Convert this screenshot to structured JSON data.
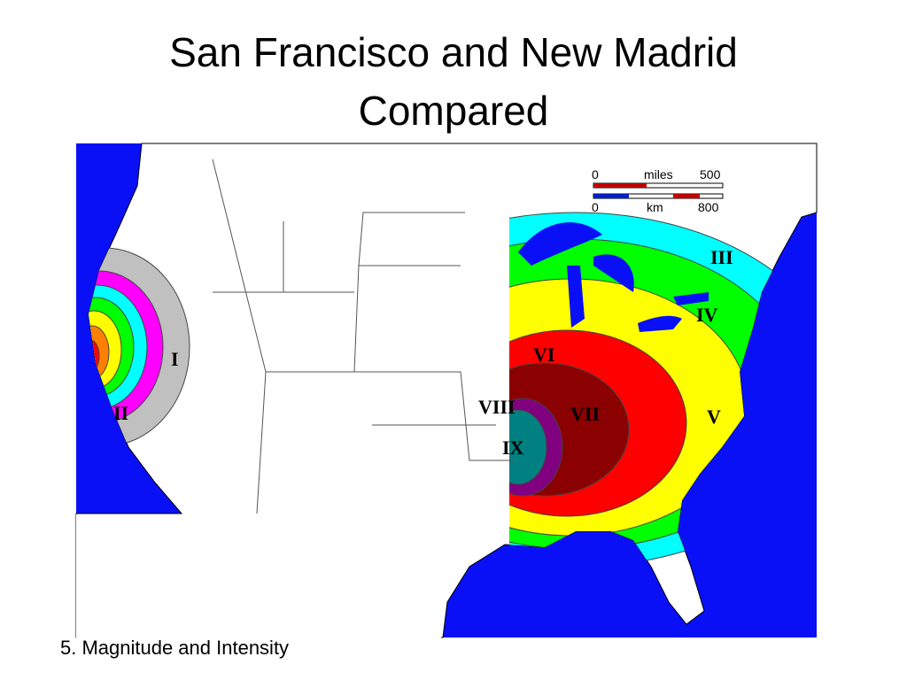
{
  "title": "San Francisco and New Madrid Compared",
  "map": {
    "scale": {
      "miles_start": "0",
      "miles_unit": "miles",
      "miles_end": "500",
      "km_start": "0",
      "km_unit": "km",
      "km_end": "800"
    },
    "zones": {
      "west": [
        "I",
        "II"
      ],
      "east": [
        "III",
        "IV",
        "V",
        "VI",
        "VII",
        "VIII",
        "IX"
      ]
    }
  },
  "caption": "5. Magnitude and Intensity"
}
